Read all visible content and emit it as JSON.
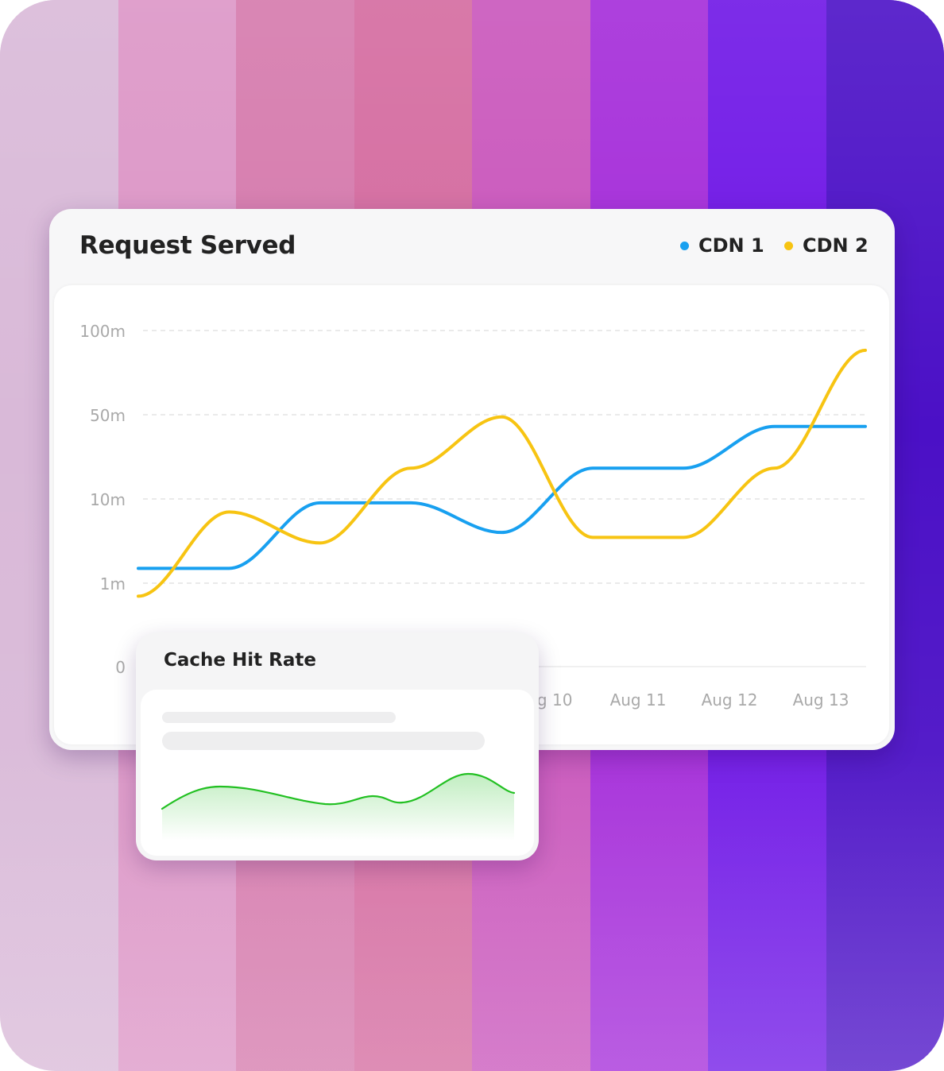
{
  "background": {
    "stripes": [
      "#d9b9d8",
      "#dc95c6",
      "#d579ac",
      "#d46a9f",
      "#c955bb",
      "#a42bd9",
      "#6e15e6",
      "#4b10c6"
    ]
  },
  "main_card": {
    "title": "Request Served",
    "legend": [
      {
        "label": "CDN 1",
        "color": "#18a0f0"
      },
      {
        "label": "CDN 2",
        "color": "#f7c412"
      }
    ]
  },
  "chart_data": {
    "type": "line",
    "title": "Request Served",
    "y_scale": "log",
    "y_ticks": [
      "100m",
      "50m",
      "10m",
      "1m",
      "0"
    ],
    "x_tick_labels": [
      "Aug 10",
      "Aug 11",
      "Aug 12",
      "Aug 13"
    ],
    "grid": "horizontal-dashed",
    "legend_position": "top-right",
    "series": [
      {
        "name": "CDN 1",
        "color": "#18a0f0",
        "values": [
          1.5,
          1.5,
          9,
          9,
          4,
          18,
          18,
          40,
          40
        ]
      },
      {
        "name": "CDN 2",
        "color": "#f7c412",
        "values": [
          0.7,
          7,
          3,
          18,
          48,
          3.5,
          3.5,
          18,
          85
        ]
      }
    ]
  },
  "cache_card": {
    "title": "Cache Hit Rate",
    "sparkline_color": "#22c022"
  }
}
